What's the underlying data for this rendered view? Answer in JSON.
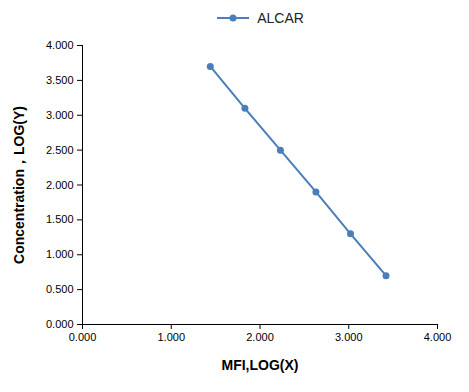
{
  "chart_data": {
    "type": "line",
    "x_label": "MFI,LOG(X)",
    "y_label": "Concentration，LOG(Y)",
    "x": [
      1.44,
      1.83,
      2.23,
      2.63,
      3.02,
      3.42
    ],
    "series": [
      {
        "name": "ALCAR",
        "color": "#4a7ebb",
        "marker": "circle",
        "line_style": "solid",
        "values": [
          3.7,
          3.1,
          2.5,
          1.9,
          1.3,
          0.7
        ]
      }
    ],
    "xlim": [
      0,
      4
    ],
    "xticks": [
      {
        "value": 0,
        "label": "0.000"
      },
      {
        "value": 1,
        "label": "1.000"
      },
      {
        "value": 2,
        "label": "2.000"
      },
      {
        "value": 3,
        "label": "3.000"
      },
      {
        "value": 4,
        "label": "4.000"
      }
    ],
    "ylim": [
      0,
      4
    ],
    "yticks": [
      {
        "value": 0,
        "label": "0.000"
      },
      {
        "value": 0.5,
        "label": "0.500"
      },
      {
        "value": 1,
        "label": "1.000"
      },
      {
        "value": 1.5,
        "label": "1.500"
      },
      {
        "value": 2,
        "label": "2.000"
      },
      {
        "value": 2.5,
        "label": "2.500"
      },
      {
        "value": 3,
        "label": "3.000"
      },
      {
        "value": 3.5,
        "label": "3.500"
      },
      {
        "value": 4,
        "label": "4.000"
      }
    ],
    "grid": false,
    "legend": "top"
  }
}
